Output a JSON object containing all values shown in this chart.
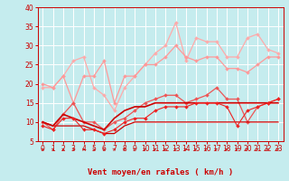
{
  "xlabel": "Vent moyen/en rafales ( km/h )",
  "background_color": "#c5ecee",
  "grid_color": "#ffffff",
  "xlim": [
    -0.5,
    23.5
  ],
  "ylim": [
    5,
    40
  ],
  "yticks": [
    5,
    10,
    15,
    20,
    25,
    30,
    35,
    40
  ],
  "xticks": [
    0,
    1,
    2,
    3,
    4,
    5,
    6,
    7,
    8,
    9,
    10,
    11,
    12,
    13,
    14,
    15,
    16,
    17,
    18,
    19,
    20,
    21,
    22,
    23
  ],
  "x": [
    0,
    1,
    2,
    3,
    4,
    5,
    6,
    7,
    8,
    9,
    10,
    11,
    12,
    13,
    14,
    15,
    16,
    17,
    18,
    19,
    20,
    21,
    22,
    23
  ],
  "series": [
    {
      "y": [
        19,
        19,
        22,
        26,
        27,
        19,
        17,
        13,
        19,
        22,
        25,
        28,
        30,
        36,
        26,
        32,
        31,
        31,
        27,
        27,
        32,
        33,
        29,
        28
      ],
      "color": "#ffaaaa",
      "marker": "D",
      "lw": 0.9,
      "ms": 2.0
    },
    {
      "y": [
        20,
        19,
        22,
        15,
        22,
        22,
        26,
        15,
        22,
        22,
        25,
        25,
        27,
        30,
        27,
        26,
        27,
        27,
        24,
        24,
        23,
        25,
        27,
        27
      ],
      "color": "#ff9999",
      "marker": "D",
      "lw": 0.9,
      "ms": 2.0
    },
    {
      "y": [
        10,
        8,
        12,
        15,
        10,
        10,
        8,
        10,
        11,
        13,
        15,
        16,
        17,
        17,
        15,
        16,
        17,
        19,
        16,
        16,
        10,
        14,
        15,
        16
      ],
      "color": "#ee5555",
      "marker": "D",
      "lw": 0.9,
      "ms": 2.0
    },
    {
      "y": [
        10,
        9,
        12,
        11,
        10,
        9,
        8,
        11,
        13,
        14,
        14,
        15,
        15,
        15,
        15,
        15,
        15,
        15,
        15,
        15,
        15,
        15,
        15,
        15
      ],
      "color": "#cc0000",
      "marker": null,
      "lw": 1.2,
      "ms": 0
    },
    {
      "y": [
        10,
        9,
        9,
        9,
        9,
        8,
        7,
        7,
        9,
        10,
        10,
        10,
        10,
        10,
        10,
        10,
        10,
        10,
        10,
        10,
        10,
        10,
        10,
        10
      ],
      "color": "#cc0000",
      "marker": null,
      "lw": 0.9,
      "ms": 0
    },
    {
      "y": [
        9,
        8,
        11,
        11,
        8,
        8,
        7,
        8,
        10,
        11,
        11,
        13,
        14,
        14,
        14,
        15,
        15,
        15,
        14,
        9,
        13,
        14,
        15,
        16
      ],
      "color": "#ee2222",
      "marker": "D",
      "lw": 0.8,
      "ms": 2.0
    }
  ],
  "arrow_color": "#cc0000",
  "xlabel_color": "#cc0000",
  "xlabel_fontsize": 6.5,
  "tick_color": "#cc0000",
  "tick_fontsize": 5.5
}
